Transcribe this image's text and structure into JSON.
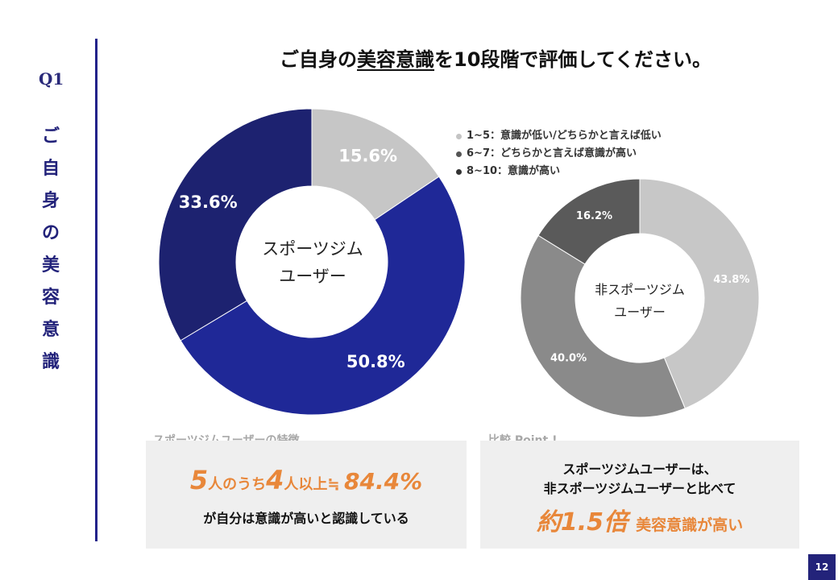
{
  "question": {
    "label": "Q1",
    "vertical_title": [
      "ご",
      "自",
      "身",
      "の",
      "美",
      "容",
      "意",
      "識"
    ]
  },
  "title": {
    "prefix": "ご自身の",
    "underlined": "美容意識",
    "suffix": "を10段階で評価してください。"
  },
  "legend": [
    {
      "label": "1~5：意識が低い/どちらかと言えば低い",
      "color": "#c4c4c4"
    },
    {
      "label": "6~7：どちらかと言えば意識が高い",
      "color": "#555555"
    },
    {
      "label": "8~10：意識が高い",
      "color": "#333333"
    }
  ],
  "chart_data": [
    {
      "type": "pie",
      "group": "gym_users",
      "center_label": [
        "スポーツジム",
        "ユーザー"
      ],
      "labels": [
        "1~5：意識が低い/どちらかと言えば低い",
        "6~7：どちらかと言えば意識が高い",
        "8~10：意識が高い"
      ],
      "values": [
        15.6,
        50.8,
        33.6
      ],
      "value_labels": [
        "15.6%",
        "50.8%",
        "33.6%"
      ],
      "colors": [
        "#c6c6c6",
        "#1f2897",
        "#1d2270"
      ]
    },
    {
      "type": "pie",
      "group": "non_gym_users",
      "center_label": [
        "非スポーツジム",
        "ユーザー"
      ],
      "labels": [
        "1~5：意識が低い/どちらかと言えば低い",
        "6~7：どちらかと言えば意識が高い",
        "8~10：意識が高い"
      ],
      "values": [
        43.8,
        40.0,
        16.2
      ],
      "value_labels": [
        "43.8%",
        "40.0%",
        "16.2%"
      ],
      "colors": [
        "#c7c7c7",
        "#8a8a8a",
        "#5a5a5a"
      ]
    }
  ],
  "features_box": {
    "caption": "スポーツジムユーザーの特徴",
    "n1": "5",
    "t1": "人のうち",
    "n2": "4",
    "t2": "人以上≒",
    "pct": "84.4%",
    "text": "が自分は意識が高いと認識している"
  },
  "compare_box": {
    "caption": "比較 Point !",
    "line1": "スポーツジムユーザーは、",
    "line2": "非スポーツジムユーザーと比べて",
    "ratio": "約1.5倍",
    "ratio_text": "美容意識が高い"
  },
  "page_number": "12"
}
